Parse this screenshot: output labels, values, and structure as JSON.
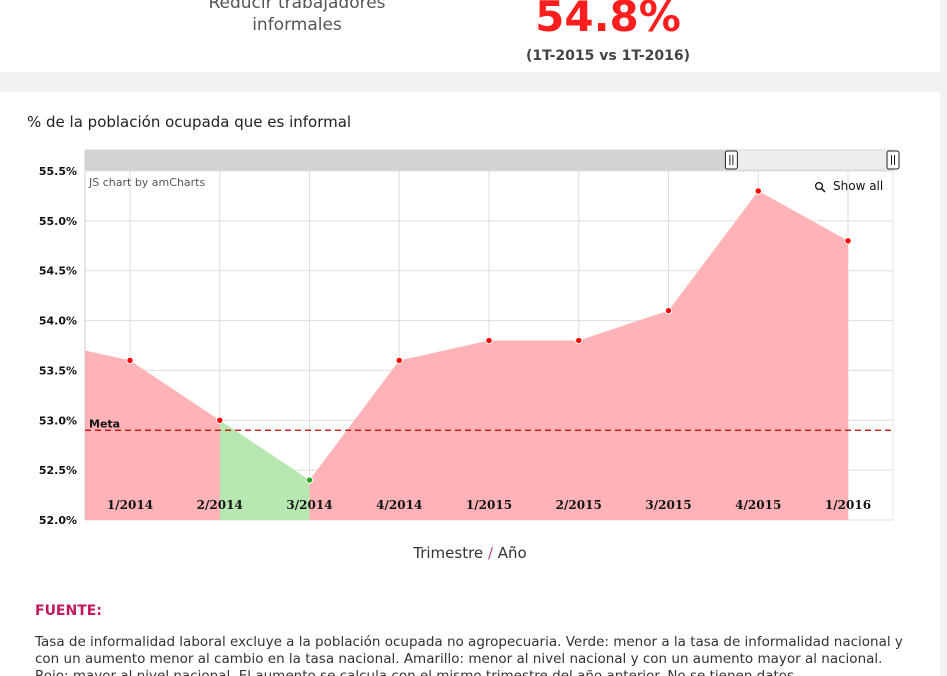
{
  "summary": {
    "goal_label": "Reducir trabajadores informales",
    "kpi_value": "54.8%",
    "kpi_comparison": "(1T-2015 vs 1T-2016)",
    "kpi_color": "#ff1e1e"
  },
  "chart_data": {
    "type": "area",
    "title": "% de la población ocupada que es informal",
    "xlabel": "Trimestre / Año",
    "ylabel": "",
    "categories": [
      "1/2014",
      "2/2014",
      "3/2014",
      "4/2014",
      "1/2015",
      "2/2015",
      "3/2015",
      "4/2015",
      "1/2016"
    ],
    "values": [
      53.6,
      53.0,
      52.4,
      53.6,
      53.8,
      53.8,
      54.1,
      55.3,
      54.8
    ],
    "point_status": [
      "red",
      "red",
      "green",
      "red",
      "red",
      "red",
      "red",
      "red",
      "red"
    ],
    "left_edge_value": 53.7,
    "ylim": [
      52.0,
      55.5
    ],
    "yticks": [
      "52.0%",
      "52.5%",
      "53.0%",
      "53.5%",
      "54.0%",
      "54.5%",
      "55.0%",
      "55.5%"
    ],
    "ytick_values": [
      52.0,
      52.5,
      53.0,
      53.5,
      54.0,
      54.5,
      55.0,
      55.5
    ],
    "target": {
      "label": "Meta",
      "value": 52.9
    },
    "grid": true,
    "legend": "none",
    "credit": "JS chart by amCharts",
    "zoom_label": "Show all",
    "scrollbar": {
      "selected_start": 0.0,
      "selected_end": 0.8
    },
    "colors": {
      "red_area": "#ffb3b6",
      "green_area": "#b7e8b2",
      "red_point": "#ff0000",
      "green_point": "#22aa22",
      "target_line": "#c00000",
      "grid": "#dddddd"
    }
  },
  "source": {
    "heading": "FUENTE:",
    "text": "Tasa de informalidad laboral excluye a la población ocupada no agropecuaria. Verde: menor a la tasa de informalidad nacional y con un aumento menor al cambio en la tasa nacional. Amarillo: menor al nivel nacional y con un aumento mayor al nacional. Rojo: mayor al nivel nacional. El aumento se calcula con el mismo trimestre del año anterior. No se tienen datos"
  }
}
